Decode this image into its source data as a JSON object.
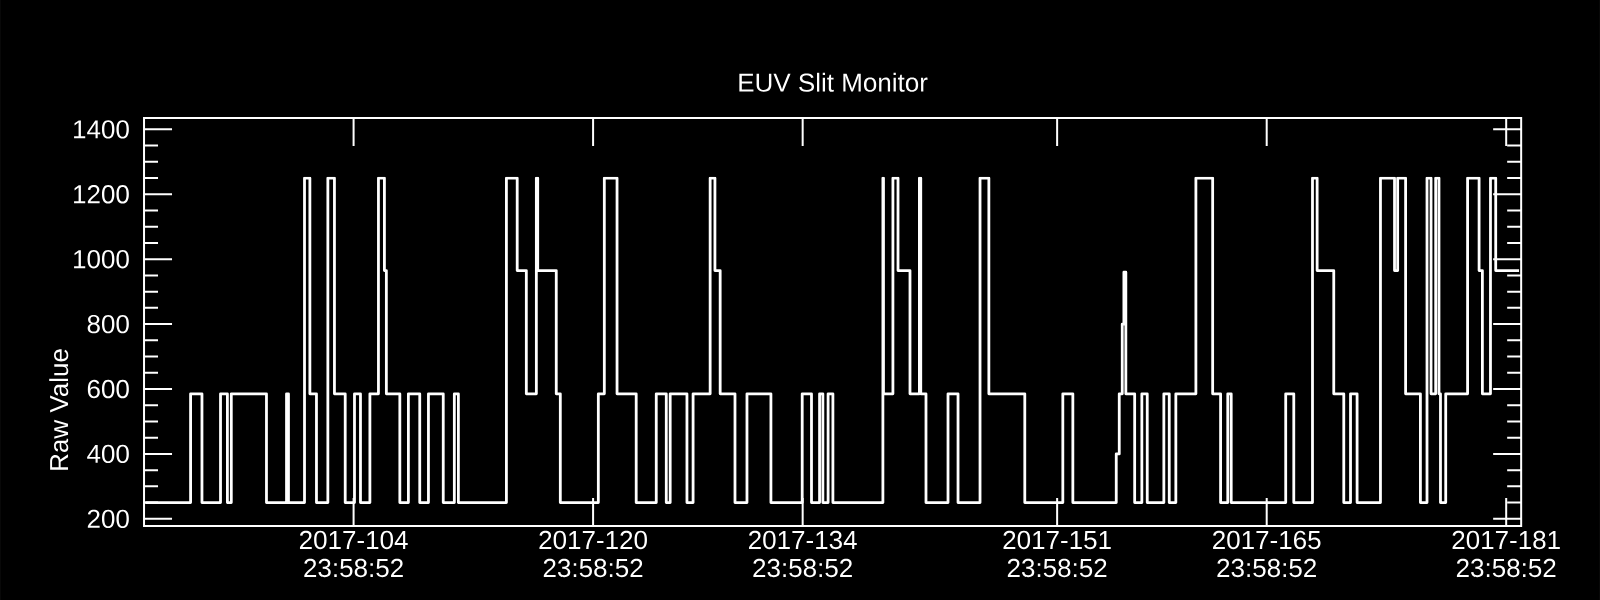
{
  "chart_data": {
    "type": "step",
    "title": "EUV Slit Monitor",
    "ylabel": "Raw Value",
    "color": "#ffffff",
    "xlim": [
      "2017-03-31T23:59",
      "2017-07-01T23:59"
    ],
    "ylim": [
      178,
      1435
    ],
    "xticks": [
      {
        "value": "2017-04-14T23:59",
        "label": "2017-104 23:58:52"
      },
      {
        "value": "2017-04-30T23:59",
        "label": "2017-120 23:58:52"
      },
      {
        "value": "2017-05-14T23:59",
        "label": "2017-134 23:58:52"
      },
      {
        "value": "2017-05-31T23:59",
        "label": "2017-151 23:58:52"
      },
      {
        "value": "2017-06-14T23:59",
        "label": "2017-165 23:58:52"
      },
      {
        "value": "2017-06-30T23:59",
        "label": "2017-181 23:58:52"
      }
    ],
    "yticks": [
      200,
      400,
      600,
      800,
      1000,
      1200,
      1400
    ],
    "x": [
      "2017-04-01T02:08",
      "2017-04-04T02:37",
      "2017-04-04T20:52",
      "2017-04-06T02:37",
      "2017-04-06T13:40",
      "2017-04-06T19:54",
      "2017-04-09T04:18",
      "2017-04-10T12:28",
      "2017-04-10T15:35",
      "2017-04-11T17:16",
      "2017-04-12T01:54",
      "2017-04-12T12:28",
      "2017-04-13T06:42",
      "2017-04-13T17:16",
      "2017-04-14T10:32",
      "2017-04-15T01:25",
      "2017-04-15T11:01",
      "2017-04-16T02:08",
      "2017-04-16T15:49",
      "2017-04-17T01:25",
      "2017-04-17T04:32",
      "2017-04-18T02:08",
      "2017-04-18T15:49",
      "2017-04-19T10:04",
      "2017-04-19T23:59",
      "2017-04-20T23:44",
      "2017-04-21T17:30",
      "2017-04-21T23:59",
      "2017-04-25T05:01",
      "2017-04-25T22:18",
      "2017-04-26T12:56",
      "2017-04-27T05:01",
      "2017-04-27T07:11",
      "2017-04-28T12:56",
      "2017-04-28T19:25",
      "2017-05-01T08:23",
      "2017-05-01T17:59",
      "2017-05-02T14:23",
      "2017-05-03T21:06",
      "2017-05-05T05:16",
      "2017-05-05T21:20",
      "2017-05-06T03:35",
      "2017-05-07T06:28",
      "2017-05-07T16:18",
      "2017-05-08T19:40",
      "2017-05-09T03:20",
      "2017-05-09T11:44",
      "2017-05-10T11:30",
      "2017-05-11T06:42",
      "2017-05-12T21:06",
      "2017-05-14T23:16",
      "2017-05-15T14:08",
      "2017-05-16T03:06",
      "2017-05-16T08:23",
      "2017-05-16T16:47",
      "2017-05-17T00:28",
      "2017-05-20T08:37",
      "2017-05-20T09:35",
      "2017-05-21T00:42",
      "2017-05-21T08:52",
      "2017-05-22T04:04",
      "2017-05-22T19:11",
      "2017-05-22T21:20",
      "2017-05-23T05:44",
      "2017-05-24T17:01",
      "2017-05-25T09:06",
      "2017-05-26T20:23",
      "2017-05-27T10:32",
      "2017-05-29T20:08",
      "2017-06-01T09:06",
      "2017-06-02T01:11",
      "2017-06-04T17:59",
      "2017-06-04T22:47",
      "2017-06-05T03:35",
      "2017-06-05T08:23",
      "2017-06-05T11:01",
      "2017-06-05T14:08",
      "2017-06-06T04:18",
      "2017-06-06T15:49",
      "2017-06-07T00:28",
      "2017-06-08T03:06",
      "2017-06-08T11:44",
      "2017-06-08T22:18",
      "2017-06-10T06:28",
      "2017-06-11T09:20",
      "2017-06-11T22:04",
      "2017-06-12T09:35",
      "2017-06-12T15:06",
      "2017-06-16T06:28",
      "2017-06-16T19:25",
      "2017-06-18T01:25",
      "2017-06-18T08:52",
      "2017-06-19T11:30",
      "2017-06-20T03:35",
      "2017-06-20T14:23",
      "2017-06-21T00:56",
      "2017-06-22T14:23",
      "2017-06-23T12:56",
      "2017-06-23T17:59",
      "2017-06-24T06:42",
      "2017-06-25T06:28",
      "2017-06-25T17:01",
      "2017-06-25T23:30",
      "2017-06-26T06:56",
      "2017-06-26T12:13",
      "2017-06-26T14:37",
      "2017-06-26T23:01",
      "2017-06-28T10:04",
      "2017-06-29T04:32",
      "2017-06-29T09:49",
      "2017-06-29T22:47",
      "2017-06-30T07:11",
      "2017-07-01T20:37"
    ],
    "values": [
      250,
      585,
      250,
      585,
      250,
      585,
      250,
      585,
      250,
      1250,
      585,
      250,
      1250,
      585,
      250,
      585,
      250,
      585,
      1250,
      965,
      585,
      250,
      585,
      250,
      585,
      250,
      585,
      250,
      1250,
      965,
      585,
      1250,
      965,
      585,
      250,
      585,
      1250,
      585,
      250,
      585,
      250,
      585,
      250,
      585,
      1250,
      965,
      585,
      250,
      585,
      250,
      585,
      250,
      585,
      250,
      585,
      250,
      1250,
      585,
      1250,
      965,
      585,
      1250,
      585,
      250,
      585,
      250,
      1250,
      585,
      250,
      585,
      250,
      250,
      400,
      585,
      800,
      960,
      585,
      250,
      585,
      250,
      585,
      250,
      585,
      1250,
      585,
      250,
      585,
      250,
      585,
      250,
      1250,
      965,
      585,
      250,
      585,
      250,
      1250,
      965,
      1250,
      585,
      250,
      1250,
      585,
      1250,
      585,
      250,
      585,
      1250,
      965,
      585,
      1250,
      965,
      965
    ]
  }
}
